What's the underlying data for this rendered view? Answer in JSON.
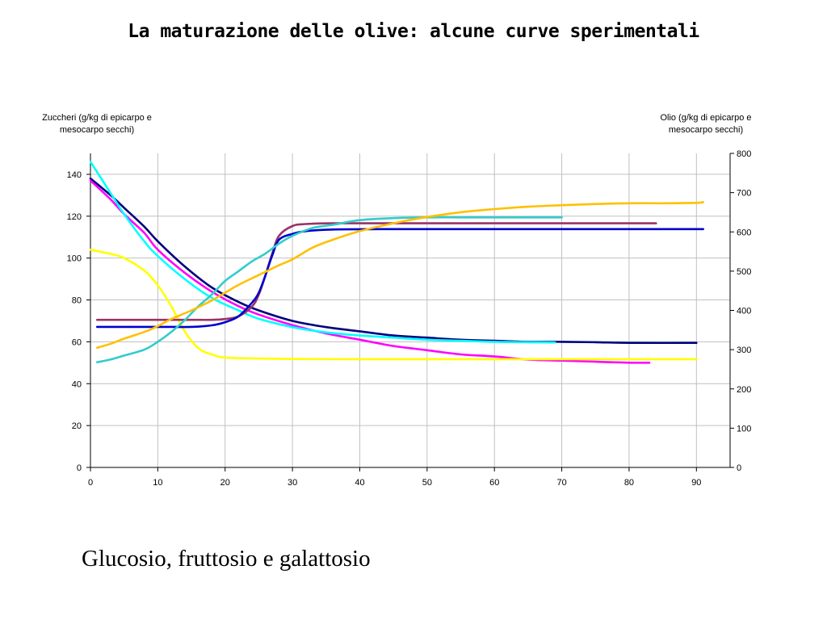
{
  "title": "La maturazione delle olive: alcune curve sperimentali",
  "caption": "Glucosio, fruttosio e galattosio",
  "chart_data": {
    "type": "line",
    "left_axis_title": "Zuccheri (g/kg di epicarpo e mesocarpo secchi)",
    "right_axis_title": "Olio (g/kg di epicarpo e mesocarpo secchi)",
    "xlim": [
      0,
      95
    ],
    "ylim_left": [
      0,
      150
    ],
    "ylim_right": [
      0,
      800
    ],
    "x_ticks": [
      0,
      10,
      20,
      30,
      40,
      50,
      60,
      70,
      80,
      90
    ],
    "y_ticks_left": [
      0,
      20,
      40,
      60,
      80,
      100,
      120,
      140
    ],
    "y_ticks_right": [
      0,
      100,
      200,
      300,
      400,
      500,
      600,
      700,
      800
    ],
    "grid": true,
    "legend": "none",
    "series": [
      {
        "axis": "left",
        "color": "#000080",
        "points": [
          [
            0,
            138
          ],
          [
            3,
            130
          ],
          [
            5,
            124
          ],
          [
            8,
            115
          ],
          [
            10,
            108
          ],
          [
            14,
            96
          ],
          [
            18,
            86
          ],
          [
            22,
            79
          ],
          [
            25,
            75
          ],
          [
            30,
            70
          ],
          [
            35,
            67
          ],
          [
            40,
            65
          ],
          [
            45,
            63
          ],
          [
            50,
            62
          ],
          [
            55,
            61
          ],
          [
            60,
            60.5
          ],
          [
            65,
            60
          ],
          [
            70,
            60
          ],
          [
            75,
            59.8
          ],
          [
            80,
            59.5
          ],
          [
            90,
            59.5
          ]
        ]
      },
      {
        "axis": "left",
        "color": "#FF00FF",
        "points": [
          [
            0,
            137
          ],
          [
            3,
            128
          ],
          [
            5,
            121
          ],
          [
            8,
            112
          ],
          [
            10,
            104
          ],
          [
            14,
            93
          ],
          [
            18,
            84
          ],
          [
            22,
            77
          ],
          [
            25,
            73
          ],
          [
            30,
            68
          ],
          [
            35,
            64
          ],
          [
            40,
            61
          ],
          [
            45,
            58
          ],
          [
            50,
            56
          ],
          [
            55,
            54
          ],
          [
            60,
            53
          ],
          [
            65,
            51.5
          ],
          [
            70,
            51
          ],
          [
            75,
            50.5
          ],
          [
            80,
            50
          ],
          [
            83,
            50
          ]
        ]
      },
      {
        "axis": "left",
        "color": "#00FFFF",
        "points": [
          [
            0,
            146
          ],
          [
            3,
            131
          ],
          [
            5,
            121
          ],
          [
            8,
            108
          ],
          [
            10,
            101
          ],
          [
            14,
            90
          ],
          [
            18,
            81
          ],
          [
            22,
            75
          ],
          [
            25,
            71
          ],
          [
            30,
            67
          ],
          [
            35,
            64.5
          ],
          [
            40,
            63
          ],
          [
            45,
            62
          ],
          [
            50,
            61
          ],
          [
            55,
            60.5
          ],
          [
            60,
            60
          ],
          [
            65,
            59.8
          ],
          [
            69,
            59.7
          ]
        ]
      },
      {
        "axis": "left",
        "color": "#FFFF00",
        "points": [
          [
            0,
            104
          ],
          [
            3,
            102
          ],
          [
            5,
            100
          ],
          [
            8,
            94
          ],
          [
            10,
            87
          ],
          [
            12,
            77
          ],
          [
            14,
            65
          ],
          [
            16,
            57
          ],
          [
            18,
            54
          ],
          [
            20,
            52.5
          ],
          [
            25,
            52
          ],
          [
            30,
            51.8
          ],
          [
            40,
            51.7
          ],
          [
            50,
            51.7
          ],
          [
            60,
            51.7
          ],
          [
            70,
            51.7
          ],
          [
            80,
            51.7
          ],
          [
            90,
            51.7
          ]
        ]
      },
      {
        "axis": "right",
        "color": "#993366",
        "points": [
          [
            1,
            376
          ],
          [
            10,
            376
          ],
          [
            15,
            376
          ],
          [
            18,
            376
          ],
          [
            20,
            378
          ],
          [
            22,
            385
          ],
          [
            24,
            410
          ],
          [
            25,
            440
          ],
          [
            26,
            490
          ],
          [
            27,
            545
          ],
          [
            28,
            590
          ],
          [
            30,
            615
          ],
          [
            32,
            620
          ],
          [
            36,
            622
          ],
          [
            45,
            622
          ],
          [
            60,
            622
          ],
          [
            70,
            622
          ],
          [
            84,
            622
          ]
        ]
      },
      {
        "axis": "right",
        "color": "#0000CC",
        "points": [
          [
            1,
            358
          ],
          [
            10,
            358
          ],
          [
            15,
            358
          ],
          [
            18,
            362
          ],
          [
            20,
            370
          ],
          [
            22,
            385
          ],
          [
            24,
            420
          ],
          [
            25,
            445
          ],
          [
            26,
            490
          ],
          [
            27,
            540
          ],
          [
            28,
            580
          ],
          [
            30,
            595
          ],
          [
            32,
            602
          ],
          [
            36,
            606
          ],
          [
            45,
            607
          ],
          [
            60,
            607
          ],
          [
            70,
            607
          ],
          [
            80,
            607
          ],
          [
            91,
            607
          ]
        ]
      },
      {
        "axis": "right",
        "color": "#33CCCC",
        "points": [
          [
            1,
            268
          ],
          [
            3,
            275
          ],
          [
            5,
            285
          ],
          [
            8,
            300
          ],
          [
            10,
            320
          ],
          [
            12,
            345
          ],
          [
            14,
            375
          ],
          [
            16,
            410
          ],
          [
            18,
            440
          ],
          [
            20,
            475
          ],
          [
            22,
            500
          ],
          [
            24,
            525
          ],
          [
            26,
            545
          ],
          [
            28,
            570
          ],
          [
            30,
            590
          ],
          [
            33,
            610
          ],
          [
            36,
            618
          ],
          [
            40,
            630
          ],
          [
            45,
            635
          ],
          [
            50,
            637
          ],
          [
            55,
            637
          ],
          [
            60,
            637
          ],
          [
            65,
            637
          ],
          [
            70,
            637
          ]
        ]
      },
      {
        "axis": "right",
        "color": "#FFC000",
        "points": [
          [
            1,
            305
          ],
          [
            3,
            315
          ],
          [
            5,
            328
          ],
          [
            8,
            345
          ],
          [
            10,
            360
          ],
          [
            12,
            378
          ],
          [
            15,
            400
          ],
          [
            18,
            425
          ],
          [
            20,
            445
          ],
          [
            22,
            465
          ],
          [
            25,
            490
          ],
          [
            28,
            515
          ],
          [
            30,
            530
          ],
          [
            33,
            560
          ],
          [
            36,
            580
          ],
          [
            40,
            602
          ],
          [
            45,
            622
          ],
          [
            50,
            638
          ],
          [
            55,
            650
          ],
          [
            60,
            658
          ],
          [
            65,
            664
          ],
          [
            70,
            668
          ],
          [
            75,
            671
          ],
          [
            80,
            673
          ],
          [
            85,
            673
          ],
          [
            90,
            674
          ],
          [
            91,
            676
          ]
        ]
      }
    ]
  }
}
